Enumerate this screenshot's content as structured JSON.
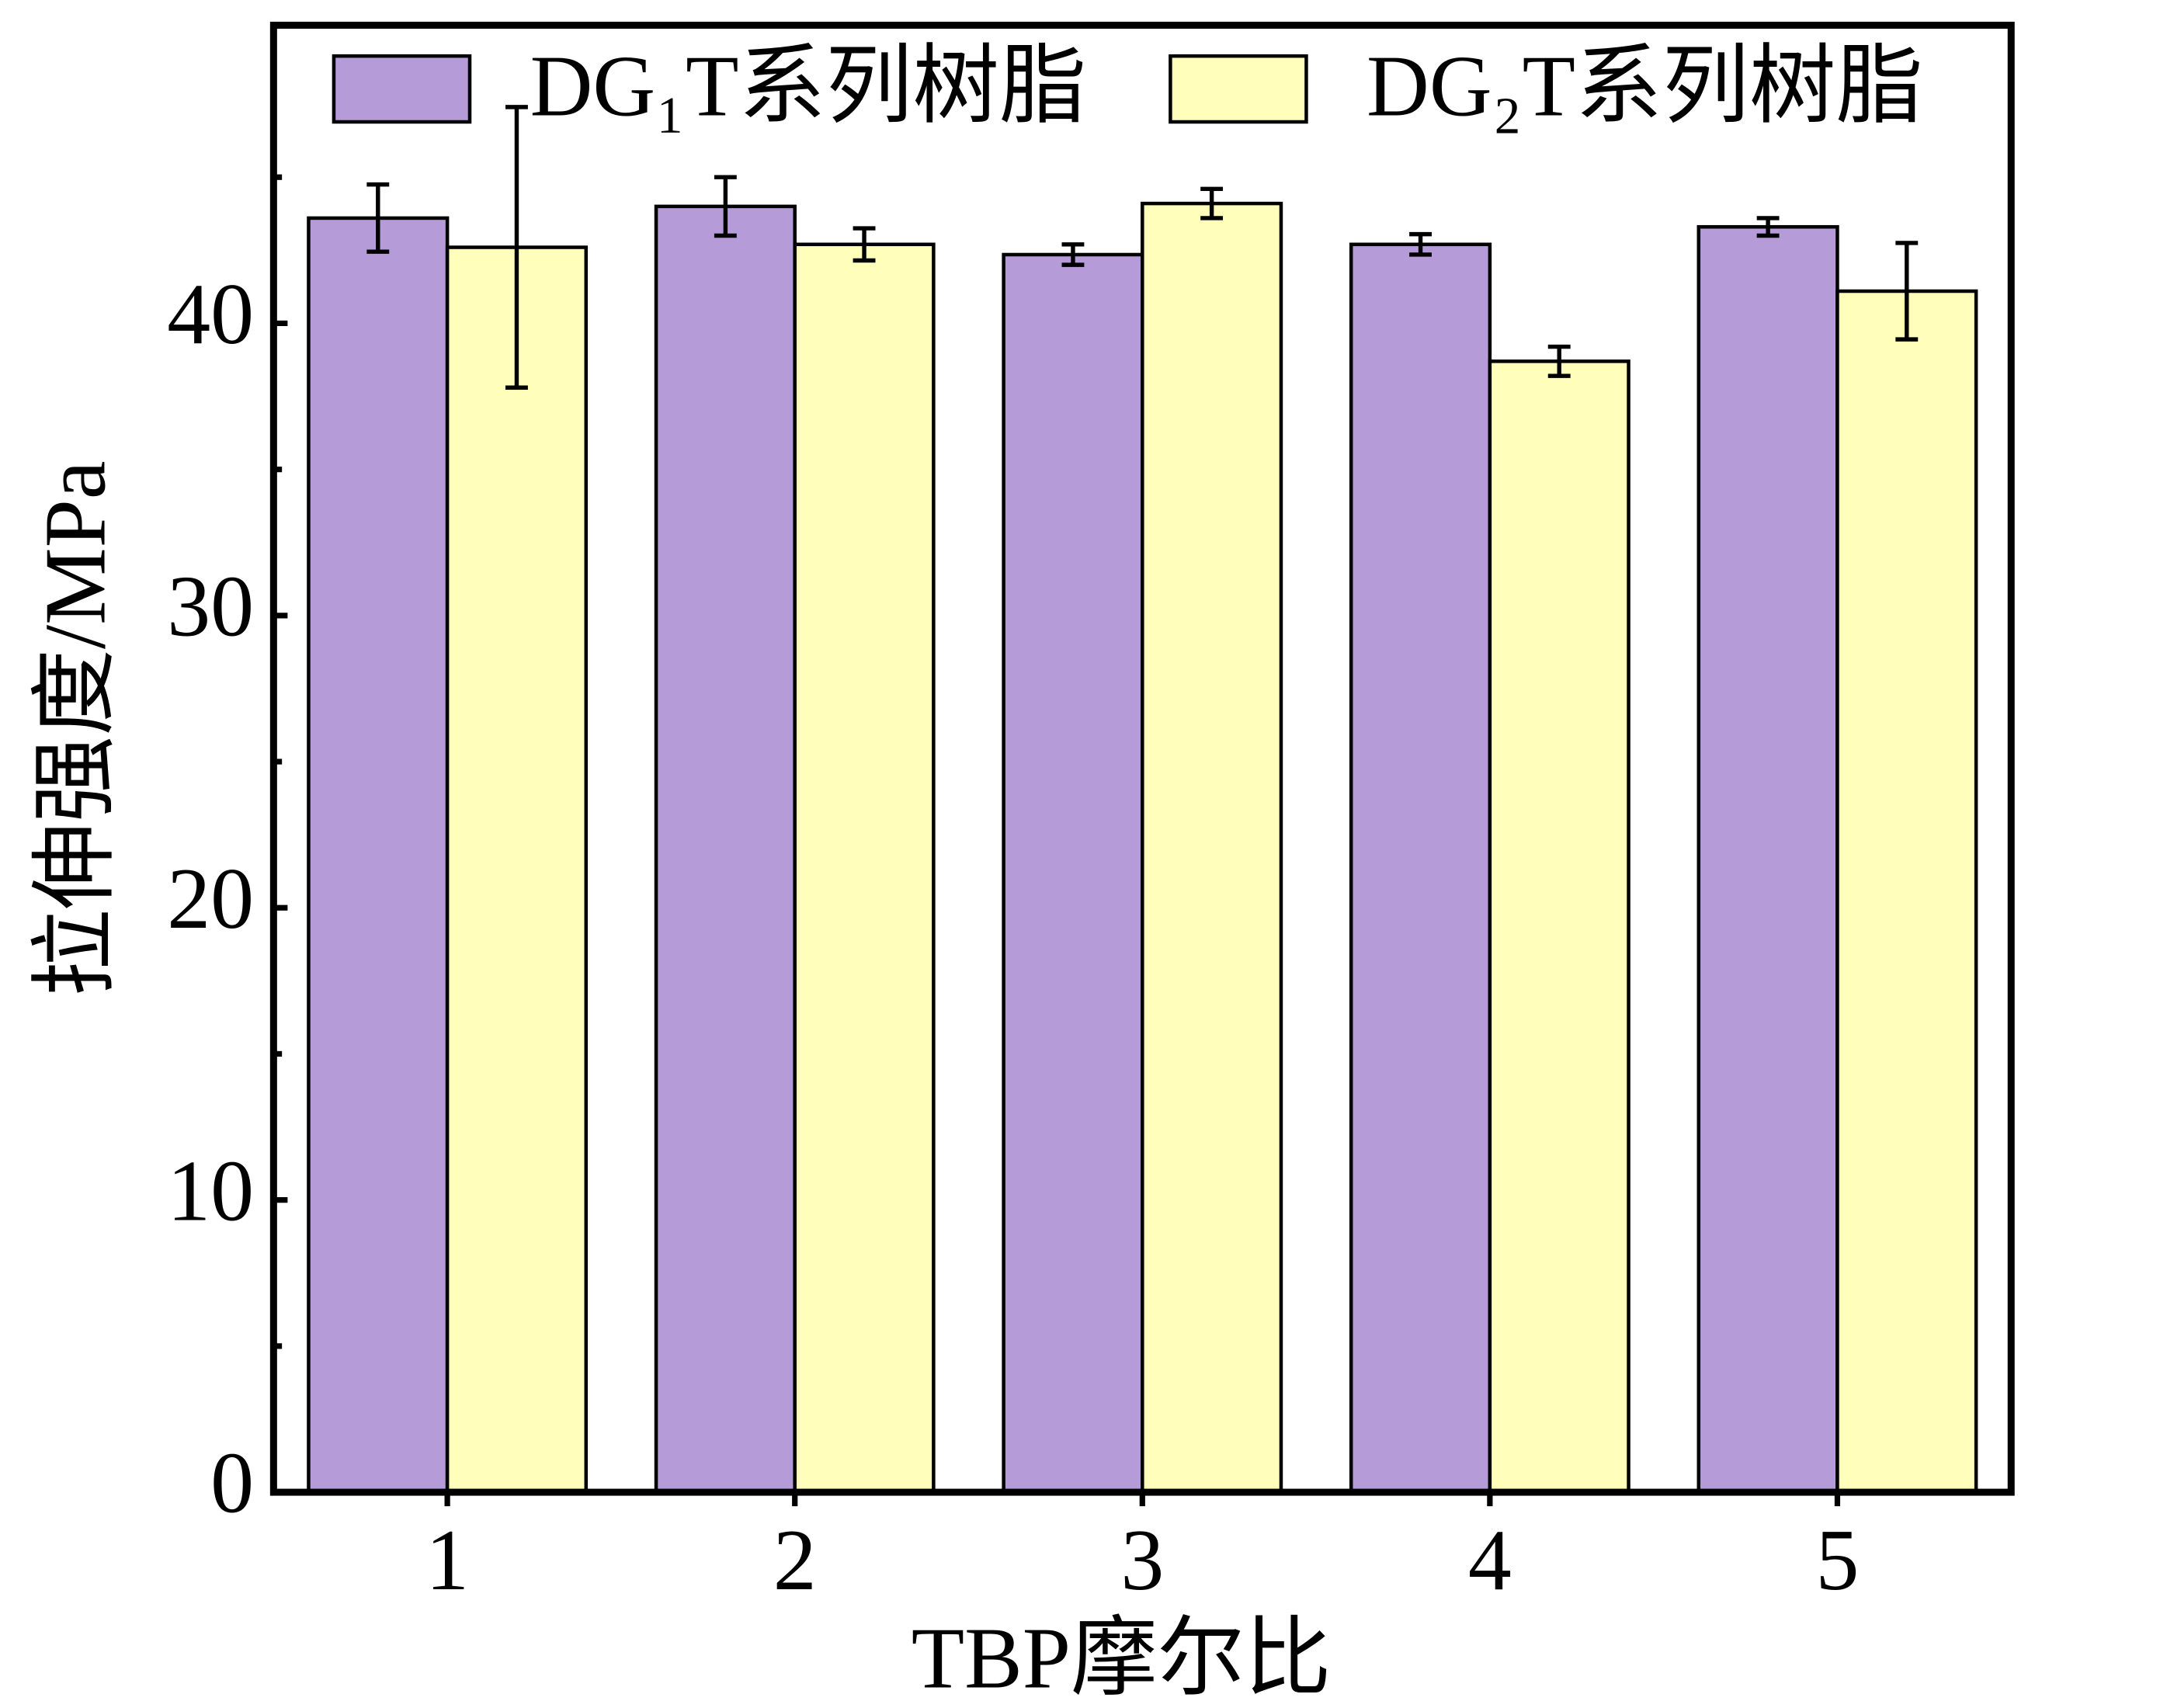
{
  "chart_data": {
    "type": "bar",
    "x_label": "TBP摩尔比",
    "y_label": "拉伸强度/MPa",
    "categories": [
      "1",
      "2",
      "3",
      "4",
      "5"
    ],
    "series": [
      {
        "name": "DG₁T系列树脂",
        "color": "#b59bd8",
        "values": [
          43.6,
          44.0,
          42.35,
          42.7,
          43.3
        ],
        "errors": [
          1.15,
          1.0,
          0.35,
          0.35,
          0.3
        ]
      },
      {
        "name": "DG₂T系列树脂",
        "color": "#ffffbb",
        "values": [
          42.6,
          42.7,
          44.1,
          38.7,
          41.1
        ],
        "errors": [
          4.8,
          0.55,
          0.5,
          0.5,
          1.65
        ]
      }
    ],
    "ylim": [
      0,
      50.2
    ],
    "yticks": [
      0,
      10,
      20,
      30,
      40
    ],
    "minor_yticks": [
      5,
      15,
      25,
      35,
      45
    ],
    "legend": "top"
  }
}
